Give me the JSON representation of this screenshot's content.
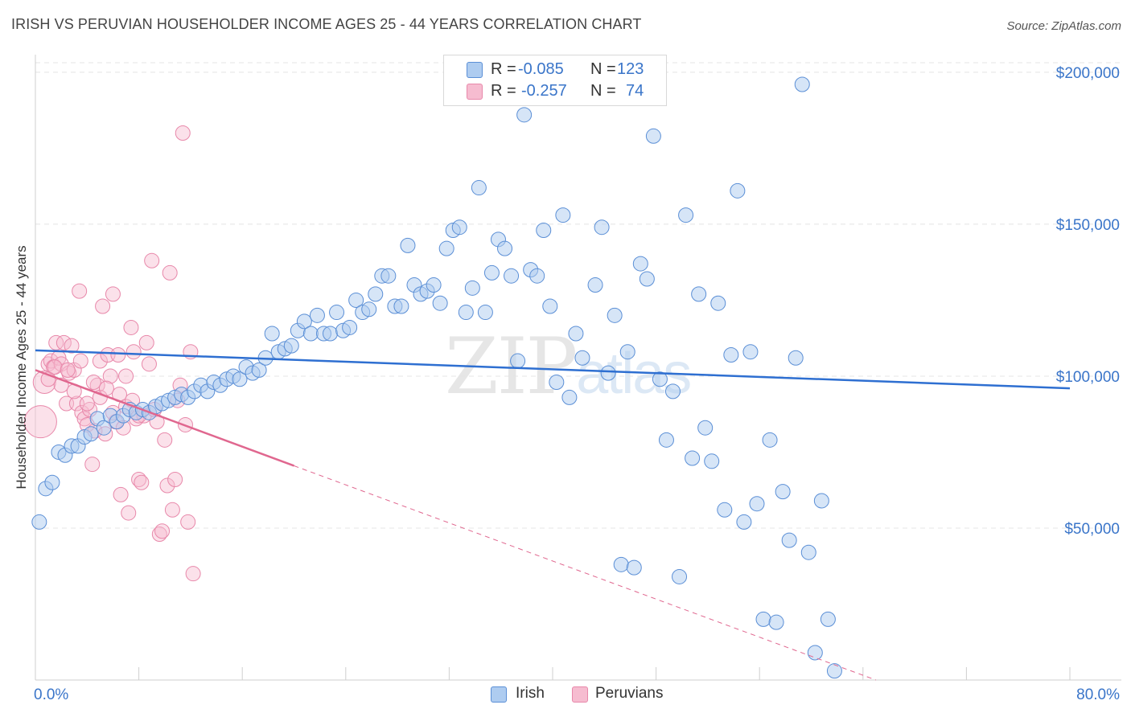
{
  "title": "IRISH VS PERUVIAN HOUSEHOLDER INCOME AGES 25 - 44 YEARS CORRELATION CHART",
  "source": "Source: ZipAtlas.com",
  "watermark": {
    "zip": "ZIP",
    "atlas": "atlas"
  },
  "legend": {
    "irish": {
      "r_label": "R =",
      "r_value": "-0.085",
      "n_label": "N =",
      "n_value": "123"
    },
    "peruvians": {
      "r_label": "R =",
      "r_value": "-0.257",
      "n_label": "N =",
      "n_value": "74"
    }
  },
  "bottom_legend": {
    "irish": "Irish",
    "peruvians": "Peruvians"
  },
  "colors": {
    "irish_fill": "#aeccf0",
    "irish_stroke": "#5b8fd6",
    "irish_line": "#2e6fd1",
    "peru_fill": "#f6bcd0",
    "peru_stroke": "#e888aa",
    "peru_line": "#e0678f",
    "tick_text": "#3a75c9"
  },
  "chart_data": {
    "type": "scatter",
    "title": "IRISH VS PERUVIAN HOUSEHOLDER INCOME AGES 25 - 44 YEARS CORRELATION CHART",
    "xlabel": "",
    "ylabel": "Householder Income Ages 25 - 44 years",
    "xlim": [
      0,
      80
    ],
    "ylim": [
      0,
      205000
    ],
    "x_tick_labels": [
      "0.0%",
      "80.0%"
    ],
    "y_ticks": [
      50000,
      100000,
      150000,
      200000
    ],
    "y_tick_labels": [
      "$50,000",
      "$100,000",
      "$150,000",
      "$200,000"
    ],
    "grid": true,
    "series": [
      {
        "name": "Irish",
        "r": -0.085,
        "n": 123,
        "trend": {
          "x": [
            0,
            80
          ],
          "y": [
            108500,
            96000
          ]
        },
        "points": [
          [
            0.3,
            52000
          ],
          [
            0.8,
            63000
          ],
          [
            1.3,
            65000
          ],
          [
            1.8,
            75000
          ],
          [
            2.3,
            74000
          ],
          [
            2.8,
            77000
          ],
          [
            3.3,
            77000
          ],
          [
            3.8,
            80000
          ],
          [
            4.3,
            81000
          ],
          [
            4.8,
            86000
          ],
          [
            5.3,
            83000
          ],
          [
            5.8,
            87000
          ],
          [
            6.3,
            85000
          ],
          [
            6.8,
            87000
          ],
          [
            7.3,
            89000
          ],
          [
            7.8,
            88000
          ],
          [
            8.3,
            89000
          ],
          [
            8.8,
            88000
          ],
          [
            9.3,
            90000
          ],
          [
            9.8,
            91000
          ],
          [
            10.3,
            92000
          ],
          [
            10.8,
            93000
          ],
          [
            11.3,
            94000
          ],
          [
            11.8,
            93000
          ],
          [
            12.3,
            95000
          ],
          [
            12.8,
            97000
          ],
          [
            13.3,
            95000
          ],
          [
            13.8,
            98000
          ],
          [
            14.3,
            97000
          ],
          [
            14.8,
            99000
          ],
          [
            15.3,
            100000
          ],
          [
            15.8,
            99000
          ],
          [
            16.3,
            103000
          ],
          [
            16.8,
            101000
          ],
          [
            17.3,
            102000
          ],
          [
            17.8,
            106000
          ],
          [
            18.3,
            114000
          ],
          [
            18.8,
            108000
          ],
          [
            19.3,
            109000
          ],
          [
            19.8,
            110000
          ],
          [
            20.3,
            115000
          ],
          [
            20.8,
            118000
          ],
          [
            21.3,
            114000
          ],
          [
            21.8,
            120000
          ],
          [
            22.3,
            114000
          ],
          [
            22.8,
            114000
          ],
          [
            23.3,
            121000
          ],
          [
            23.8,
            115000
          ],
          [
            24.3,
            116000
          ],
          [
            24.8,
            125000
          ],
          [
            25.3,
            121000
          ],
          [
            25.8,
            122000
          ],
          [
            26.3,
            127000
          ],
          [
            26.8,
            133000
          ],
          [
            27.3,
            133000
          ],
          [
            27.8,
            123000
          ],
          [
            28.3,
            123000
          ],
          [
            28.8,
            143000
          ],
          [
            29.3,
            130000
          ],
          [
            29.8,
            127000
          ],
          [
            30.3,
            128000
          ],
          [
            30.8,
            130000
          ],
          [
            31.3,
            124000
          ],
          [
            31.8,
            142000
          ],
          [
            32.3,
            148000
          ],
          [
            32.8,
            149000
          ],
          [
            33.3,
            121000
          ],
          [
            33.8,
            129000
          ],
          [
            34.3,
            162000
          ],
          [
            34.8,
            121000
          ],
          [
            35.3,
            134000
          ],
          [
            35.8,
            145000
          ],
          [
            36.3,
            142000
          ],
          [
            36.8,
            133000
          ],
          [
            37.3,
            105000
          ],
          [
            37.8,
            186000
          ],
          [
            38.3,
            135000
          ],
          [
            38.8,
            133000
          ],
          [
            39.3,
            148000
          ],
          [
            39.8,
            123000
          ],
          [
            40.3,
            98000
          ],
          [
            40.8,
            153000
          ],
          [
            41.3,
            93000
          ],
          [
            41.8,
            114000
          ],
          [
            42.3,
            106000
          ],
          [
            42.8,
            193000
          ],
          [
            43.3,
            130000
          ],
          [
            43.8,
            149000
          ],
          [
            44.3,
            101000
          ],
          [
            44.8,
            120000
          ],
          [
            45.3,
            38000
          ],
          [
            45.8,
            108000
          ],
          [
            46.3,
            37000
          ],
          [
            46.8,
            137000
          ],
          [
            47.3,
            132000
          ],
          [
            47.8,
            179000
          ],
          [
            48.3,
            99000
          ],
          [
            48.8,
            79000
          ],
          [
            49.3,
            95000
          ],
          [
            49.8,
            34000
          ],
          [
            50.3,
            153000
          ],
          [
            50.8,
            73000
          ],
          [
            51.3,
            127000
          ],
          [
            51.8,
            83000
          ],
          [
            52.3,
            72000
          ],
          [
            52.8,
            124000
          ],
          [
            53.3,
            56000
          ],
          [
            53.8,
            107000
          ],
          [
            54.3,
            161000
          ],
          [
            54.8,
            52000
          ],
          [
            55.3,
            108000
          ],
          [
            55.8,
            58000
          ],
          [
            56.3,
            20000
          ],
          [
            56.8,
            79000
          ],
          [
            57.3,
            19000
          ],
          [
            57.8,
            62000
          ],
          [
            58.3,
            46000
          ],
          [
            58.8,
            106000
          ],
          [
            59.3,
            196000
          ],
          [
            59.8,
            42000
          ],
          [
            60.3,
            9000
          ],
          [
            60.8,
            59000
          ],
          [
            61.3,
            20000
          ],
          [
            61.8,
            3000
          ]
        ]
      },
      {
        "name": "Peruvians",
        "r": -0.257,
        "n": 74,
        "trend": {
          "x": [
            0,
            20
          ],
          "y": [
            102000,
            70500
          ]
        },
        "trend_dashed": {
          "x": [
            20,
            65
          ],
          "y": [
            70500,
            0
          ]
        },
        "points": [
          [
            0.4,
            85000
          ],
          [
            0.7,
            98000
          ],
          [
            1.0,
            104000
          ],
          [
            1.2,
            105000
          ],
          [
            1.4,
            103000
          ],
          [
            1.6,
            111000
          ],
          [
            1.8,
            106000
          ],
          [
            2.0,
            104000
          ],
          [
            2.2,
            111000
          ],
          [
            2.4,
            91000
          ],
          [
            2.6,
            101000
          ],
          [
            2.8,
            110000
          ],
          [
            3.0,
            102000
          ],
          [
            3.2,
            91000
          ],
          [
            3.4,
            128000
          ],
          [
            3.6,
            88000
          ],
          [
            3.8,
            86000
          ],
          [
            4.0,
            84000
          ],
          [
            4.2,
            89000
          ],
          [
            4.4,
            71000
          ],
          [
            4.6,
            82000
          ],
          [
            4.8,
            97000
          ],
          [
            5.0,
            105000
          ],
          [
            5.2,
            123000
          ],
          [
            5.4,
            81000
          ],
          [
            5.6,
            107000
          ],
          [
            5.8,
            100000
          ],
          [
            6.0,
            127000
          ],
          [
            6.2,
            85000
          ],
          [
            6.4,
            107000
          ],
          [
            6.6,
            61000
          ],
          [
            6.8,
            83000
          ],
          [
            7.0,
            100000
          ],
          [
            7.2,
            55000
          ],
          [
            7.4,
            116000
          ],
          [
            7.6,
            108000
          ],
          [
            7.8,
            86000
          ],
          [
            8.0,
            66000
          ],
          [
            8.2,
            65000
          ],
          [
            8.4,
            87000
          ],
          [
            8.6,
            111000
          ],
          [
            8.8,
            104000
          ],
          [
            9.0,
            138000
          ],
          [
            9.2,
            89000
          ],
          [
            9.4,
            85000
          ],
          [
            9.6,
            48000
          ],
          [
            9.8,
            49000
          ],
          [
            10.0,
            79000
          ],
          [
            10.2,
            64000
          ],
          [
            10.4,
            134000
          ],
          [
            10.6,
            56000
          ],
          [
            10.8,
            66000
          ],
          [
            11.0,
            92000
          ],
          [
            11.2,
            97000
          ],
          [
            11.4,
            180000
          ],
          [
            11.6,
            84000
          ],
          [
            11.8,
            52000
          ],
          [
            12.0,
            108000
          ],
          [
            12.2,
            35000
          ],
          [
            1.0,
            99000
          ],
          [
            1.5,
            103000
          ],
          [
            2.0,
            97000
          ],
          [
            2.5,
            102000
          ],
          [
            3.0,
            95000
          ],
          [
            3.5,
            105000
          ],
          [
            4.0,
            91000
          ],
          [
            4.5,
            98000
          ],
          [
            5.0,
            93000
          ],
          [
            5.5,
            96000
          ],
          [
            6.0,
            88000
          ],
          [
            6.5,
            94000
          ],
          [
            7.0,
            90000
          ],
          [
            7.5,
            92000
          ],
          [
            8.0,
            87000
          ]
        ]
      }
    ]
  }
}
